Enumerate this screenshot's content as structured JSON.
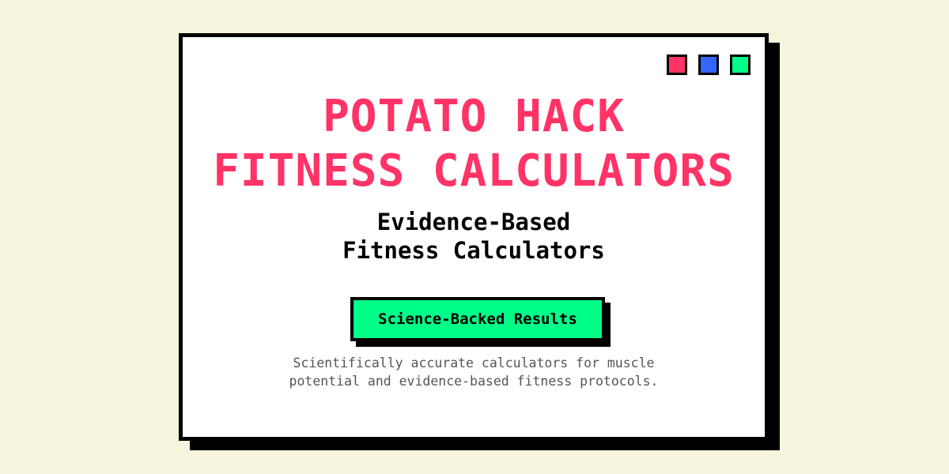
{
  "colors": {
    "background": "#f5f4dc",
    "card": "#ffffff",
    "border": "#000000",
    "title": "#ff3366",
    "badge": "#00ff88",
    "dot_red": "#ff3366",
    "dot_blue": "#3366ff",
    "dot_green": "#00ff88"
  },
  "window_controls": [
    {
      "icon": "red-square-icon",
      "color": "#ff3366"
    },
    {
      "icon": "blue-square-icon",
      "color": "#3366ff"
    },
    {
      "icon": "green-square-icon",
      "color": "#00ff88"
    }
  ],
  "hero": {
    "title_line1": "POTATO HACK",
    "title_line2": "FITNESS CALCULATORS",
    "subtitle_line1": "Evidence-Based",
    "subtitle_line2": "Fitness Calculators",
    "badge_label": "Science-Backed Results",
    "description_line1": "Scientifically accurate calculators for muscle",
    "description_line2": "potential and evidence-based fitness protocols."
  }
}
